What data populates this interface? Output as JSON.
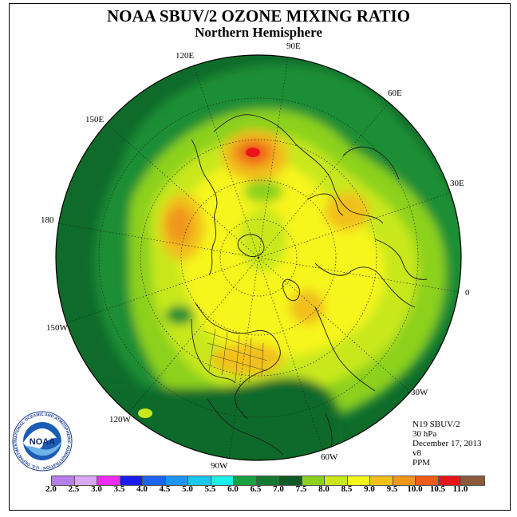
{
  "header": {
    "title": "NOAA SBUV/2 OZONE MIXING RATIO",
    "subtitle": "Northern Hemisphere"
  },
  "map": {
    "projection": "polar-stereographic-north",
    "longitude_labels": [
      "90E",
      "60E",
      "30E",
      "0",
      "30W",
      "60W",
      "90W",
      "120W",
      "150W",
      "180",
      "150E",
      "120E"
    ],
    "field_colors": {
      "deep": "#0f6b2a",
      "green": "#1f8e35",
      "light_green": "#8cd11f",
      "yellow_green": "#c8e81c",
      "yellow": "#f6f51c",
      "gold": "#f2c01a",
      "orange": "#f0961a",
      "red_orange": "#f05a1a",
      "red": "#e8141a"
    }
  },
  "info": {
    "instrument": "N19 SBUV/2",
    "level": "30 hPa",
    "date": "December 17, 2013",
    "version": "v8",
    "units": "PPM"
  },
  "colorbar": {
    "labels": [
      "2.0",
      "2.5",
      "3.0",
      "3.5",
      "4.0",
      "4.5",
      "5.0",
      "5.5",
      "6.0",
      "6.5",
      "7.0",
      "7.5",
      "8.0",
      "8.5",
      "9.0",
      "9.5",
      "10.0",
      "10.5",
      "11.0"
    ],
    "colors": [
      "#b57ee8",
      "#d9a8f5",
      "#ef2cef",
      "#1c1cef",
      "#1c64ef",
      "#1c96ef",
      "#1cc8ef",
      "#1cf0e8",
      "#1c9f40",
      "#137a30",
      "#0f5a24",
      "#8cd11f",
      "#c8e81c",
      "#f6f51c",
      "#f2c01a",
      "#f0961a",
      "#f05a1a",
      "#e8141a",
      "#8b5a3c"
    ]
  },
  "logo": {
    "text": "NOAA",
    "ring_text": "NATIONAL OCEANIC AND ATMOSPHERIC ADMINISTRATION · U.S. DEPARTMENT OF COMMERCE"
  }
}
